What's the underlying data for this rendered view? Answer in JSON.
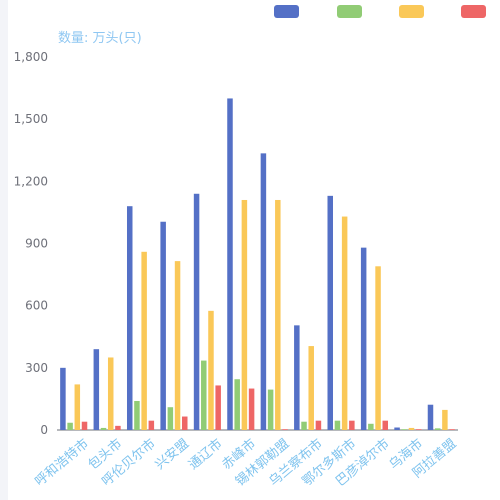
{
  "chart_data": {
    "type": "bar",
    "ylabel": "数量: 万头(只)",
    "categories": [
      "呼和浩特市",
      "包头市",
      "呼伦贝尔市",
      "兴安盟",
      "通辽市",
      "赤峰市",
      "锡林郭勒盟",
      "乌兰察布市",
      "鄂尔多斯市",
      "巴彦淖尔市",
      "乌海市",
      "阿拉善盟"
    ],
    "series": [
      {
        "color": "#5470c6",
        "values": [
          300,
          390,
          1080,
          1005,
          1140,
          1600,
          1335,
          505,
          1130,
          880,
          12,
          122
        ]
      },
      {
        "color": "#91cc75",
        "values": [
          35,
          10,
          140,
          110,
          335,
          245,
          195,
          40,
          45,
          30,
          2,
          8
        ]
      },
      {
        "color": "#fac858",
        "values": [
          220,
          350,
          860,
          815,
          575,
          1110,
          1110,
          405,
          1030,
          790,
          10,
          97
        ]
      },
      {
        "color": "#ee6666",
        "values": [
          40,
          20,
          45,
          65,
          215,
          200,
          3,
          45,
          45,
          45,
          2,
          3
        ]
      }
    ],
    "ylim": [
      0,
      1800
    ],
    "yticks": [
      "0",
      "300",
      "600",
      "900",
      "1,200",
      "1,500",
      "1,800"
    ],
    "legend_position": "top-right",
    "grid": false
  }
}
